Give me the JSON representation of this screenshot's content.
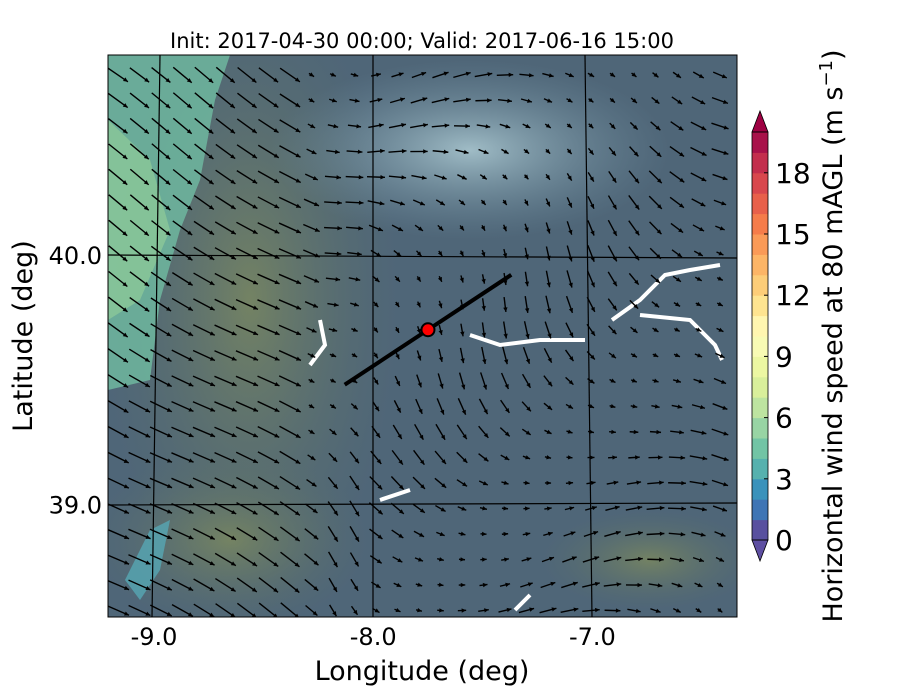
{
  "chart_data": {
    "type": "heatmap",
    "title": "Init: 2017-04-30 00:00; Valid: 2017-06-16 15:00",
    "xlabel": "Longitude (deg)",
    "ylabel": "Latitude (deg)",
    "xlim": [
      -9.21,
      -6.34
    ],
    "ylim": [
      38.55,
      40.8
    ],
    "xticks": [
      -9.0,
      -8.0,
      -7.0
    ],
    "xtick_labels": [
      "-9.0",
      "-8.0",
      "-7.0"
    ],
    "yticks": [
      39.0,
      40.0
    ],
    "ytick_labels": [
      "39.0",
      "40.0"
    ],
    "grid": true,
    "overlay": "wind vectors (quiver)",
    "colorbar": {
      "label": "Horizontal wind speed at 80 mAGL (m s",
      "label_sup": "−1",
      "label_close": ")",
      "range": [
        0,
        20
      ],
      "ticks": [
        0,
        3,
        6,
        9,
        12,
        15,
        18
      ],
      "tick_labels": [
        "0",
        "3",
        "6",
        "9",
        "12",
        "15",
        "18"
      ],
      "extend": "both",
      "colors": [
        "#58509f",
        "#3f75b5",
        "#3a92bb",
        "#56b1ae",
        "#72c4a5",
        "#98d4a4",
        "#bde4a0",
        "#d9ef9b",
        "#ecf7a2",
        "#f8fbb4",
        "#fff6b0",
        "#fee490",
        "#fdcd78",
        "#fdb566",
        "#fa9a57",
        "#f57c4a",
        "#e8604a",
        "#d8474d",
        "#c32e4d",
        "#a8124a"
      ],
      "under_color": "#5e4fa2",
      "over_color": "#9e0142"
    },
    "transect_line": {
      "start": [
        -8.13,
        39.48
      ],
      "end": [
        -7.37,
        39.92
      ],
      "color": "#000000"
    },
    "marker": {
      "lon": -7.75,
      "lat": 39.7,
      "color": "#ff0000"
    }
  }
}
